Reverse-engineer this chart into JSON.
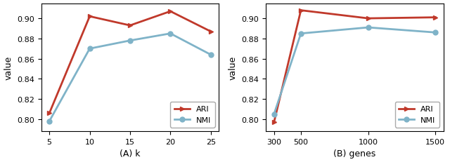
{
  "plot_A": {
    "x": [
      5,
      10,
      15,
      20,
      25
    ],
    "ARI": [
      0.806,
      0.902,
      0.893,
      0.907,
      0.887
    ],
    "NMI": [
      0.798,
      0.87,
      0.878,
      0.885,
      0.864
    ],
    "xlabel": "(A) k",
    "ylabel": "value",
    "xticks": [
      5,
      10,
      15,
      20,
      25
    ],
    "ylim": [
      0.788,
      0.915
    ]
  },
  "plot_B": {
    "x": [
      300,
      500,
      1000,
      1500
    ],
    "ARI": [
      0.797,
      0.908,
      0.9,
      0.901
    ],
    "NMI": [
      0.805,
      0.885,
      0.891,
      0.886
    ],
    "xlabel": "(B) genes",
    "ylabel": "value",
    "xticks": [
      300,
      500,
      1000,
      1500
    ],
    "ylim": [
      0.788,
      0.915
    ]
  },
  "ARI_color": "#c0392b",
  "NMI_color": "#7fb3c8",
  "linewidth": 2.0,
  "markersize": 5,
  "tick_fontsize": 8,
  "label_fontsize": 9,
  "legend_fontsize": 8
}
